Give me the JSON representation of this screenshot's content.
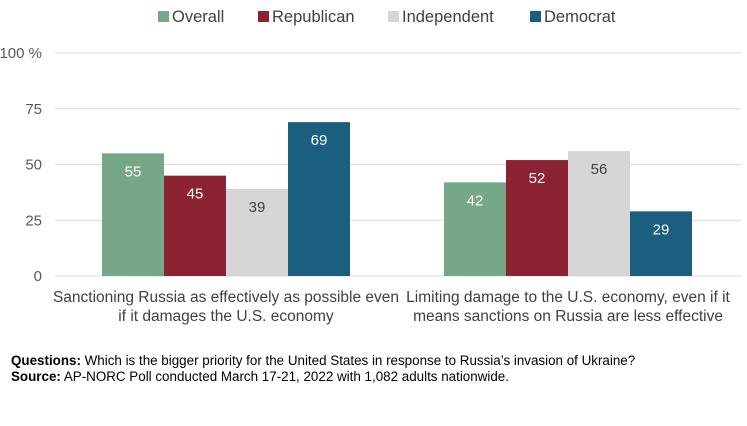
{
  "chart_data": {
    "type": "bar",
    "categories": [
      [
        "Sanctioning Russia as effectively as possible even",
        "if it damages the U.S. economy"
      ],
      [
        "Limiting damage to the U.S. economy, even if it",
        "means sanctions on Russia are less effective"
      ]
    ],
    "series": [
      {
        "name": "Overall",
        "color": "#76a888",
        "label_color": "#ffffff",
        "values": [
          55,
          42
        ]
      },
      {
        "name": "Republican",
        "color": "#8b2332",
        "label_color": "#ffffff",
        "values": [
          45,
          52
        ]
      },
      {
        "name": "Independent",
        "color": "#d6d6d6",
        "label_color": "#404040",
        "values": [
          39,
          56
        ]
      },
      {
        "name": "Democrat",
        "color": "#1b5e80",
        "label_color": "#ffffff",
        "values": [
          69,
          29
        ]
      }
    ],
    "ylim": [
      0,
      100
    ],
    "yticks": [
      0,
      25,
      50,
      75,
      100
    ],
    "ytick_suffix_top": " %",
    "grid": true,
    "gridline_color": "#d9d9d9",
    "legend_position": "top"
  },
  "notes": {
    "questions_label": "Questions:",
    "questions_text": " Which is the bigger priority for the United States in response to Russia’s invasion of Ukraine?",
    "source_label": "Source:",
    "source_text": " AP-NORC Poll conducted March 17-21, 2022 with 1,082 adults nationwide."
  }
}
